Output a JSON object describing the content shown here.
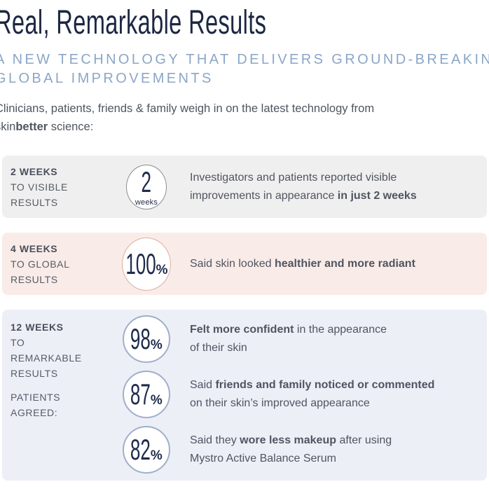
{
  "header": {
    "title": "Real, Remarkable Results",
    "subtitle_lines": [
      "A NEW TECHNOLOGY THAT DELIVERS GROUND-BREAKING",
      "GLOBAL IMPROVEMENTS"
    ],
    "intro": {
      "line1": "Clinicians, patients, friends & family weigh in on the latest technology from",
      "brand_regular": "skin",
      "brand_bold": "better",
      "line2_rest": " science:"
    }
  },
  "colors": {
    "title_navy": "#1c2742",
    "subtitle_blue": "#8ba6c7",
    "body_text": "#4f5560",
    "stat_navy": "#1e2b4b",
    "card1_bg": "#f0efef",
    "card2_bg": "#f9ece8",
    "card3_bg": "#edeff7",
    "circle1_border": "#8d8d8d",
    "circle2_border": "#ddafa0",
    "circle3_border": "#9fafca"
  },
  "cards": [
    {
      "label_strong": "2 WEEKS",
      "label_lines": [
        "TO VISIBLE",
        "RESULTS"
      ],
      "stat": {
        "value": "2",
        "unit": "weeks",
        "lines": [
          [
            {
              "t": "Investigators and patients reported visible"
            }
          ],
          [
            {
              "t": "improvements in appearance "
            },
            {
              "t": "in just 2 weeks",
              "b": true
            }
          ]
        ]
      }
    },
    {
      "label_strong": "4 WEEKS",
      "label_lines": [
        "TO GLOBAL",
        "RESULTS"
      ],
      "stat": {
        "value": "100",
        "pct": "%",
        "lines": [
          [
            {
              "t": "Said skin looked "
            },
            {
              "t": "healthier and more radiant",
              "b": true
            }
          ]
        ]
      }
    },
    {
      "label_strong": "12 WEEKS",
      "label_lines": [
        "TO",
        "REMARKABLE",
        "RESULTS"
      ],
      "label_sub_lines": [
        "PATIENTS",
        "AGREED:"
      ],
      "stats": [
        {
          "value": "98",
          "pct": "%",
          "lines": [
            [
              {
                "t": "Felt more confident",
                "b": true
              },
              {
                "t": " in the appearance"
              }
            ],
            [
              {
                "t": "of their skin"
              }
            ]
          ]
        },
        {
          "value": "87",
          "pct": "%",
          "lines": [
            [
              {
                "t": "Said "
              },
              {
                "t": "friends and family noticed or commented",
                "b": true
              }
            ],
            [
              {
                "t": "on their skin’s improved appearance"
              }
            ]
          ]
        },
        {
          "value": "82",
          "pct": "%",
          "lines": [
            [
              {
                "t": "Said they "
              },
              {
                "t": "wore less makeup",
                "b": true
              },
              {
                "t": " after using"
              }
            ],
            [
              {
                "t": "Mystro Active Balance Serum"
              }
            ]
          ]
        }
      ]
    }
  ]
}
